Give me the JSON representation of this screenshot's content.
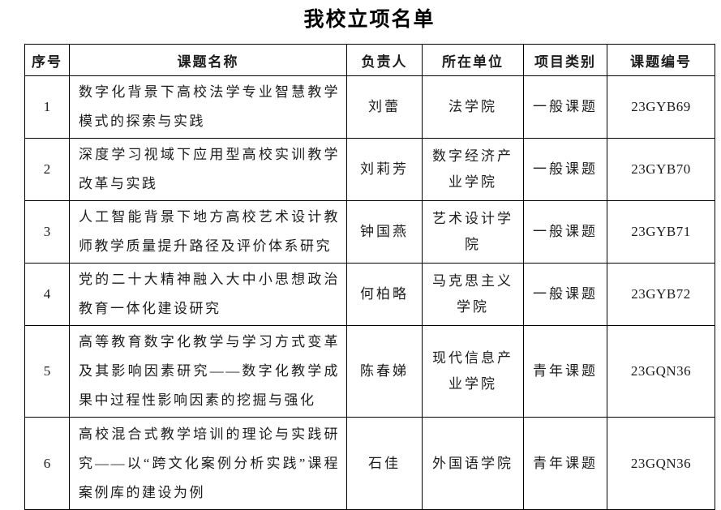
{
  "page": {
    "title": "我校立项名单"
  },
  "table": {
    "headers": [
      "序号",
      "课题名称",
      "负责人",
      "所在单位",
      "项目类别",
      "课题编号"
    ],
    "rows": [
      {
        "no": "1",
        "title": "数字化背景下高校法学专业智慧教学模式的探索与实践",
        "leader": "刘蕾",
        "unit": "法学院",
        "category": "一般课题",
        "code": "23GYB69"
      },
      {
        "no": "2",
        "title": "深度学习视域下应用型高校实训教学改革与实践",
        "leader": "刘莉芳",
        "unit": "数字经济产业学院",
        "category": "一般课题",
        "code": "23GYB70"
      },
      {
        "no": "3",
        "title": "人工智能背景下地方高校艺术设计教师教学质量提升路径及评价体系研究",
        "leader": "钟国燕",
        "unit": "艺术设计学院",
        "category": "一般课题",
        "code": "23GYB71"
      },
      {
        "no": "4",
        "title": "党的二十大精神融入大中小思想政治教育一体化建设研究",
        "leader": "何柏略",
        "unit": "马克思主义学院",
        "category": "一般课题",
        "code": "23GYB72"
      },
      {
        "no": "5",
        "title": "高等教育数字化教学与学习方式变革及其影响因素研究——数字化教学成果中过程性影响因素的挖掘与强化",
        "leader": "陈春娣",
        "unit": "现代信息产业学院",
        "category": "青年课题",
        "code": "23GQN36"
      },
      {
        "no": "6",
        "title": "高校混合式教学培训的理论与实践研究——以“跨文化案例分析实践”课程案例库的建设为例",
        "leader": "石佳",
        "unit": "外国语学院",
        "category": "青年课题",
        "code": "23GQN36"
      }
    ]
  },
  "colors": {
    "text": "#1c1c1c",
    "border": "#000000",
    "background": "#ffffff"
  }
}
